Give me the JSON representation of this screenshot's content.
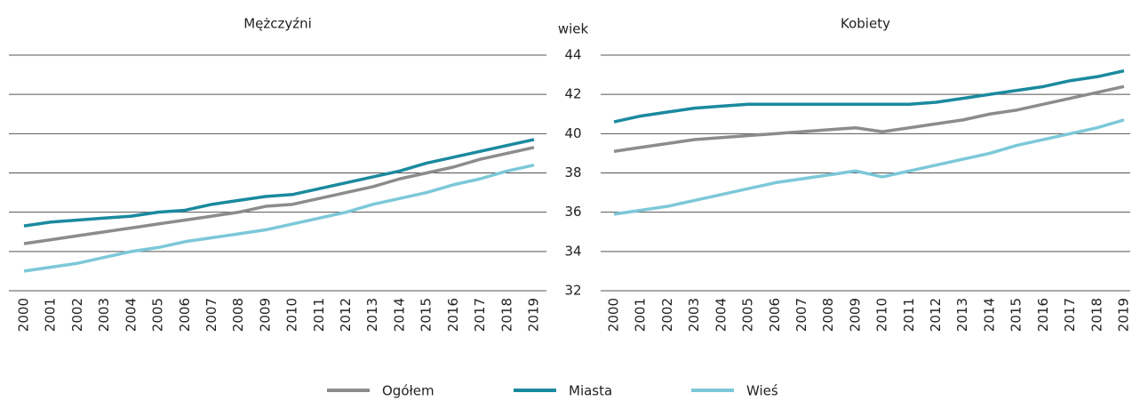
{
  "chart_data": [
    {
      "type": "line",
      "title": "Mężczyźni",
      "categories": [
        "2000",
        "2001",
        "2002",
        "2003",
        "2004",
        "2005",
        "2006",
        "2007",
        "2008",
        "2009",
        "2010",
        "2011",
        "2012",
        "2013",
        "2014",
        "2015",
        "2016",
        "2017",
        "2018",
        "2019"
      ],
      "ylim": [
        32,
        44
      ],
      "yticks": [
        32,
        34,
        36,
        38,
        40,
        42,
        44
      ],
      "grid": true,
      "series": [
        {
          "color": "#8c8c8c",
          "values": [
            34.4,
            34.6,
            34.8,
            35.0,
            35.2,
            35.4,
            35.6,
            35.8,
            36.0,
            36.3,
            36.4,
            36.7,
            37.0,
            37.3,
            37.7,
            38.0,
            38.3,
            38.7,
            39.0,
            39.3
          ]
        },
        {
          "color": "#1a8a9e",
          "values": [
            35.3,
            35.5,
            35.6,
            35.7,
            35.8,
            36.0,
            36.1,
            36.4,
            36.6,
            36.8,
            36.9,
            37.2,
            37.5,
            37.8,
            38.1,
            38.5,
            38.8,
            39.1,
            39.4,
            39.7
          ]
        },
        {
          "color": "#7cc8d8",
          "values": [
            33.0,
            33.2,
            33.4,
            33.7,
            34.0,
            34.2,
            34.5,
            34.7,
            34.9,
            35.1,
            35.4,
            35.7,
            36.0,
            36.4,
            36.7,
            37.0,
            37.4,
            37.7,
            38.1,
            38.4
          ]
        }
      ]
    },
    {
      "type": "line",
      "title": "Kobiety",
      "ylabel": "wiek",
      "categories": [
        "2000",
        "2001",
        "2002",
        "2003",
        "2004",
        "2005",
        "2006",
        "2007",
        "2008",
        "2009",
        "2010",
        "2011",
        "2012",
        "2013",
        "2014",
        "2015",
        "2016",
        "2017",
        "2018",
        "2019"
      ],
      "ylim": [
        32,
        44
      ],
      "yticks": [
        32,
        34,
        36,
        38,
        40,
        42,
        44
      ],
      "grid": true,
      "series": [
        {
          "color": "#8c8c8c",
          "values": [
            39.1,
            39.3,
            39.5,
            39.7,
            39.8,
            39.9,
            40.0,
            40.1,
            40.2,
            40.3,
            40.1,
            40.3,
            40.5,
            40.7,
            41.0,
            41.2,
            41.5,
            41.8,
            42.1,
            42.4
          ]
        },
        {
          "color": "#1a8a9e",
          "values": [
            40.6,
            40.9,
            41.1,
            41.3,
            41.4,
            41.5,
            41.5,
            41.5,
            41.5,
            41.5,
            41.5,
            41.5,
            41.6,
            41.8,
            42.0,
            42.2,
            42.4,
            42.7,
            42.9,
            43.2
          ]
        },
        {
          "color": "#7cc8d8",
          "values": [
            35.9,
            36.1,
            36.3,
            36.6,
            36.9,
            37.2,
            37.5,
            37.7,
            37.9,
            38.1,
            37.8,
            38.1,
            38.4,
            38.7,
            39.0,
            39.4,
            39.7,
            40.0,
            40.3,
            40.7
          ]
        }
      ]
    }
  ],
  "legend": [
    {
      "name": "Ogółem",
      "color": "#8c8c8c"
    },
    {
      "name": "Miasta",
      "color": "#1a8a9e"
    },
    {
      "name": "Wieś",
      "color": "#7cc8d8"
    }
  ]
}
